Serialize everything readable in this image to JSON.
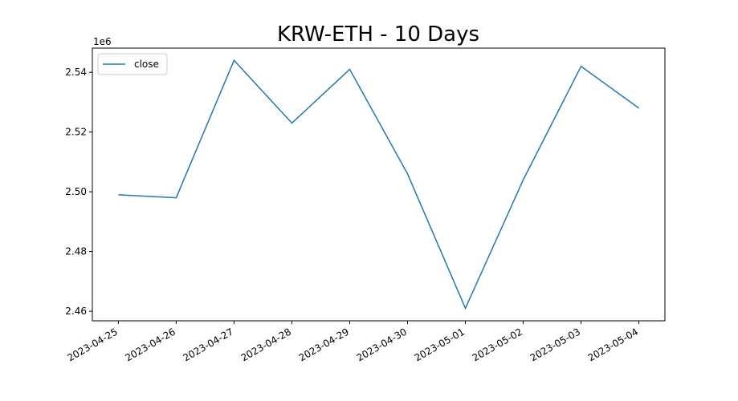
{
  "chart_data": {
    "type": "line",
    "title": "KRW-ETH - 10 Days",
    "y_offset_label": "1e6",
    "x": [
      "2023-04-25",
      "2023-04-26",
      "2023-04-27",
      "2023-04-28",
      "2023-04-29",
      "2023-04-30",
      "2023-05-01",
      "2023-05-02",
      "2023-05-03",
      "2023-05-04"
    ],
    "series": [
      {
        "name": "close",
        "color": "#1f77b4",
        "values": [
          2.499,
          2.498,
          2.544,
          2.523,
          2.541,
          2.506,
          2.461,
          2.504,
          2.542,
          2.528
        ]
      }
    ],
    "ylim": [
      2.4568,
      2.5481
    ],
    "yticks": [
      2.46,
      2.48,
      {
        "value": 2.5,
        "label": "2.50"
      },
      2.52,
      2.54
    ],
    "legend": "upper left",
    "grid": false
  }
}
